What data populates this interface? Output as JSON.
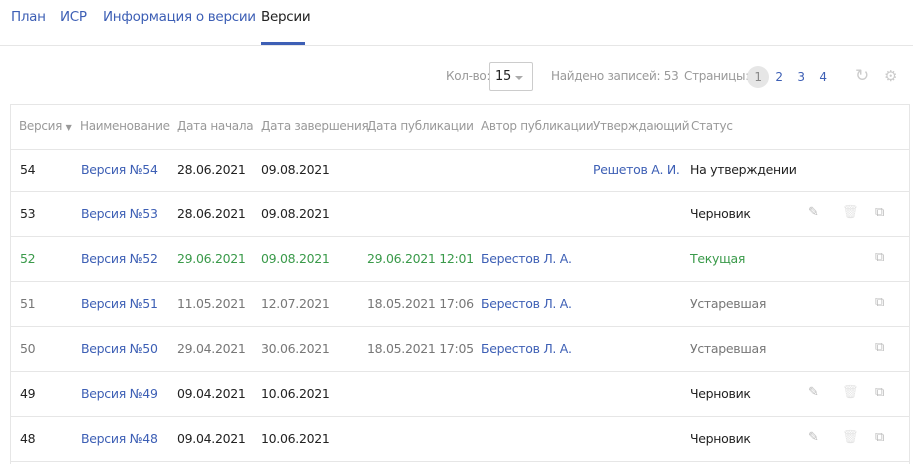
{
  "tabs": [
    {
      "label": "План"
    },
    {
      "label": "ИСР"
    },
    {
      "label": "Информация о версии"
    },
    {
      "label": "Версии",
      "active": true
    }
  ],
  "toolbar": {
    "count_label": "Кол-во:",
    "count_value": "15",
    "found_label": "Найдено записей: 53",
    "pages_label": "Страницы:",
    "pages": [
      "1",
      "2",
      "3",
      "4"
    ],
    "current_page": "1",
    "refresh_icon": "refresh-icon",
    "settings_icon": "gear-icon"
  },
  "columns": [
    "Версия",
    "Наименование",
    "Дата начала",
    "Дата завершения",
    "Дата публикации",
    "Автор публикации",
    "Утверждающий",
    "Статус"
  ],
  "colors": {
    "link": "#3d5fb5",
    "current": "#3a9a4a",
    "obsolete": "#777777",
    "default": "#222222"
  },
  "rows": [
    {
      "version": "54",
      "name": "Версия №54",
      "start": "28.06.2021",
      "end": "09.08.2021",
      "published": "",
      "author": "",
      "approver": "Решетов А. И.",
      "status": "На утверждении",
      "kind": "default",
      "actions": []
    },
    {
      "version": "53",
      "name": "Версия №53",
      "start": "28.06.2021",
      "end": "09.08.2021",
      "published": "",
      "author": "",
      "approver": "",
      "status": "Черновик",
      "kind": "default",
      "actions": [
        "edit",
        "delete",
        "copy"
      ]
    },
    {
      "version": "52",
      "name": "Версия №52",
      "start": "29.06.2021",
      "end": "09.08.2021",
      "published": "29.06.2021 12:01",
      "author": "Берестов Л. А.",
      "approver": "",
      "status": "Текущая",
      "kind": "current",
      "actions": [
        "copy"
      ]
    },
    {
      "version": "51",
      "name": "Версия №51",
      "start": "11.05.2021",
      "end": "12.07.2021",
      "published": "18.05.2021 17:06",
      "author": "Берестов Л. А.",
      "approver": "",
      "status": "Устаревшая",
      "kind": "obsolete",
      "actions": [
        "copy"
      ]
    },
    {
      "version": "50",
      "name": "Версия №50",
      "start": "29.04.2021",
      "end": "30.06.2021",
      "published": "18.05.2021 17:05",
      "author": "Берестов Л. А.",
      "approver": "",
      "status": "Устаревшая",
      "kind": "obsolete",
      "actions": [
        "copy"
      ]
    },
    {
      "version": "49",
      "name": "Версия №49",
      "start": "09.04.2021",
      "end": "10.06.2021",
      "published": "",
      "author": "",
      "approver": "",
      "status": "Черновик",
      "kind": "default",
      "actions": [
        "edit",
        "delete",
        "copy"
      ]
    },
    {
      "version": "48",
      "name": "Версия №48",
      "start": "09.04.2021",
      "end": "10.06.2021",
      "published": "",
      "author": "",
      "approver": "",
      "status": "Черновик",
      "kind": "default",
      "actions": [
        "edit",
        "delete",
        "copy"
      ]
    }
  ]
}
